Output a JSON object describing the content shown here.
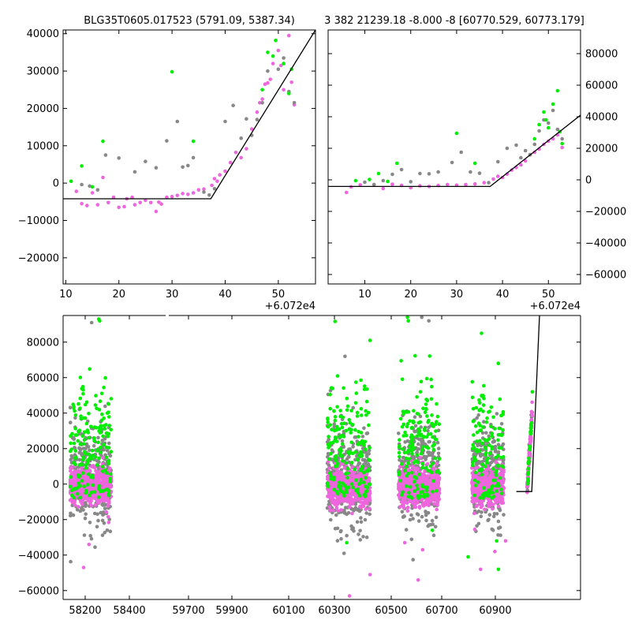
{
  "chart_data": [
    {
      "id": "top_left",
      "type": "scatter",
      "title": "BLG35T0605.017523 (5791.09, 5387.34)",
      "x_offset_label": "+6.072e4",
      "xlim": [
        9.5,
        57
      ],
      "ylim": [
        -27000,
        41000
      ],
      "xticks": [
        10,
        20,
        30,
        40,
        50
      ],
      "yticks": [
        -20000,
        -10000,
        0,
        10000,
        20000,
        30000,
        40000
      ],
      "ytick_labels": [
        "−20000",
        "−10000",
        "0",
        "10000",
        "20000",
        "30000",
        "40000"
      ],
      "y_axis_side": "left",
      "model_line": {
        "x": [
          9.5,
          37.3,
          57
        ],
        "y": [
          -4200,
          -4200,
          41000
        ]
      },
      "series": [
        {
          "color": "#ee66dd",
          "points": [
            [
              12,
              -2200
            ],
            [
              13,
              -5500
            ],
            [
              14,
              -6000
            ],
            [
              15,
              -2600
            ],
            [
              16,
              -5800
            ],
            [
              17,
              1500
            ],
            [
              18,
              -5200
            ],
            [
              19,
              -3800
            ],
            [
              20,
              -6500
            ],
            [
              21,
              -6300
            ],
            [
              21.5,
              -4200
            ],
            [
              22.5,
              -3800
            ],
            [
              23,
              -5800
            ],
            [
              24,
              -5200
            ],
            [
              25,
              -4600
            ],
            [
              26,
              -5200
            ],
            [
              27,
              -7600
            ],
            [
              27.5,
              -5100
            ],
            [
              28,
              -5600
            ],
            [
              29,
              -3800
            ],
            [
              30,
              -3600
            ],
            [
              31,
              -3300
            ],
            [
              32,
              -2800
            ],
            [
              33,
              -3000
            ],
            [
              34,
              -2600
            ],
            [
              35,
              -1800
            ],
            [
              36,
              -1600
            ],
            [
              37.5,
              -600
            ],
            [
              38,
              1200
            ],
            [
              38.5,
              500
            ],
            [
              39,
              2200
            ],
            [
              40,
              3200
            ],
            [
              41,
              5500
            ],
            [
              42,
              8200
            ],
            [
              43,
              6800
            ],
            [
              44,
              9200
            ],
            [
              45,
              14500
            ],
            [
              46,
              19000
            ],
            [
              46.5,
              21500
            ],
            [
              47,
              22500
            ],
            [
              47.5,
              26500
            ],
            [
              48,
              26800
            ],
            [
              48.5,
              27800
            ],
            [
              49,
              32000
            ],
            [
              50,
              35500
            ],
            [
              50.5,
              31500
            ],
            [
              51,
              25000
            ],
            [
              52,
              39500
            ],
            [
              52.5,
              27000
            ],
            [
              53,
              21000
            ]
          ]
        },
        {
          "color": "#888888",
          "points": [
            [
              13,
              -400
            ],
            [
              14.5,
              -800
            ],
            [
              16,
              -1800
            ],
            [
              17.5,
              7500
            ],
            [
              20,
              6700
            ],
            [
              23,
              3000
            ],
            [
              25,
              5800
            ],
            [
              27,
              4100
            ],
            [
              29,
              11300
            ],
            [
              31,
              16500
            ],
            [
              32,
              4300
            ],
            [
              33,
              4700
            ],
            [
              34,
              6800
            ],
            [
              36,
              -2400
            ],
            [
              37,
              -3200
            ],
            [
              38,
              -1500
            ],
            [
              40,
              16500
            ],
            [
              41.5,
              20800
            ],
            [
              43,
              12000
            ],
            [
              44,
              17200
            ],
            [
              45,
              12800
            ],
            [
              46,
              17000
            ],
            [
              47,
              21500
            ],
            [
              48,
              30000
            ],
            [
              50,
              30500
            ],
            [
              51,
              33500
            ],
            [
              52,
              24500
            ],
            [
              53,
              21500
            ]
          ]
        },
        {
          "color": "#00ee00",
          "points": [
            [
              11,
              500
            ],
            [
              13,
              4600
            ],
            [
              15,
              -1000
            ],
            [
              17,
              11200
            ],
            [
              30,
              29800
            ],
            [
              34,
              11200
            ],
            [
              47,
              25000
            ],
            [
              48,
              35000
            ],
            [
              49,
              34000
            ],
            [
              49.5,
              38200
            ],
            [
              51,
              32000
            ],
            [
              52,
              24000
            ],
            [
              52.5,
              30500
            ]
          ]
        }
      ]
    },
    {
      "id": "top_right",
      "type": "scatter",
      "title": "3 382 21239.18 -8.000 -8 [60770.529, 60773.179]",
      "x_offset_label": "+6.072e4",
      "xlim": [
        2,
        57
      ],
      "ylim": [
        -66000,
        95000
      ],
      "xticks": [
        10,
        20,
        30,
        40,
        50
      ],
      "yticks": [
        -60000,
        -40000,
        -20000,
        0,
        20000,
        40000,
        60000,
        80000
      ],
      "ytick_labels": [
        "−60000",
        "−40000",
        "−20000",
        "0",
        "20000",
        "40000",
        "60000",
        "80000"
      ],
      "y_axis_side": "right",
      "model_line": {
        "x": [
          2,
          37.3,
          57
        ],
        "y": [
          -4200,
          -4200,
          41000
        ]
      },
      "series": [
        {
          "color": "#ee66dd",
          "points": [
            [
              6,
              -8000
            ],
            [
              7,
              -4500
            ],
            [
              9,
              -3200
            ],
            [
              12,
              -3000
            ],
            [
              14,
              -5500
            ],
            [
              16,
              -2800
            ],
            [
              18,
              -3500
            ],
            [
              20,
              -5000
            ],
            [
              22,
              -3800
            ],
            [
              24,
              -4200
            ],
            [
              26,
              -3600
            ],
            [
              28,
              -3000
            ],
            [
              30,
              -3400
            ],
            [
              32,
              -3000
            ],
            [
              34,
              -2600
            ],
            [
              36,
              -1800
            ],
            [
              38,
              500
            ],
            [
              39,
              2200
            ],
            [
              40,
              1500
            ],
            [
              41,
              3600
            ],
            [
              42,
              6200
            ],
            [
              43,
              7800
            ],
            [
              44,
              9500
            ],
            [
              45,
              12000
            ],
            [
              46,
              15800
            ],
            [
              47,
              17500
            ],
            [
              48,
              19500
            ],
            [
              49,
              22500
            ],
            [
              50,
              24500
            ],
            [
              51,
              26000
            ],
            [
              52,
              28500
            ],
            [
              53,
              20500
            ]
          ]
        },
        {
          "color": "#888888",
          "points": [
            [
              10,
              -1500
            ],
            [
              12,
              -3000
            ],
            [
              14,
              -500
            ],
            [
              16,
              3500
            ],
            [
              18,
              6500
            ],
            [
              20,
              -1200
            ],
            [
              22,
              4000
            ],
            [
              24,
              3800
            ],
            [
              26,
              5000
            ],
            [
              29,
              11000
            ],
            [
              31,
              17500
            ],
            [
              33,
              5000
            ],
            [
              35,
              4200
            ],
            [
              37,
              -1800
            ],
            [
              39,
              11500
            ],
            [
              41,
              20000
            ],
            [
              43,
              22000
            ],
            [
              44,
              14000
            ],
            [
              45,
              18500
            ],
            [
              46,
              16000
            ],
            [
              47,
              22500
            ],
            [
              48,
              31000
            ],
            [
              49,
              38000
            ],
            [
              50,
              36000
            ],
            [
              51,
              44000
            ],
            [
              52,
              32000
            ],
            [
              53,
              26000
            ]
          ]
        },
        {
          "color": "#00ee00",
          "points": [
            [
              8,
              -500
            ],
            [
              11,
              200
            ],
            [
              13,
              4000
            ],
            [
              15,
              -1000
            ],
            [
              17,
              10500
            ],
            [
              30,
              29500
            ],
            [
              34,
              10500
            ],
            [
              47,
              26000
            ],
            [
              48,
              35000
            ],
            [
              49,
              43000
            ],
            [
              49.5,
              38000
            ],
            [
              50,
              33000
            ],
            [
              51,
              48000
            ],
            [
              52,
              56500
            ],
            [
              52.5,
              30500
            ],
            [
              53,
              23000
            ]
          ]
        }
      ]
    },
    {
      "id": "bottom",
      "type": "scatter",
      "xlim": [
        58130,
        61030
      ],
      "ylim": [
        -65000,
        95000
      ],
      "xticks": [
        58200,
        58400,
        59700,
        59900,
        60100,
        60300,
        60500,
        60700,
        60900
      ],
      "xtick_labels": [
        "58200",
        "58400",
        "59700",
        "59900",
        "60100",
        "60300",
        "60500",
        "60700",
        "60900"
      ],
      "yticks": [
        -60000,
        -40000,
        -20000,
        0,
        20000,
        40000,
        60000,
        80000
      ],
      "ytick_labels": [
        "−60000",
        "−40000",
        "−20000",
        "0",
        "20000",
        "40000",
        "60000",
        "80000"
      ],
      "y_axis_side": "left",
      "seasons": [
        [
          58170,
          58400
        ],
        [
          59610,
          59850
        ],
        [
          60010,
          60240
        ],
        [
          60420,
          60600
        ],
        [
          60730,
          60760
        ]
      ],
      "model_line": {
        "x": [
          60670,
          60757,
          60800
        ],
        "y": [
          -4200,
          -4200,
          95000
        ]
      },
      "series": [
        {
          "color": "#ee66dd",
          "name": "",
          "center": 0,
          "spread": 5000,
          "weight": 1.0
        },
        {
          "color": "#888888",
          "name": "",
          "center": 5000,
          "spread": 14000,
          "weight": 0.55
        },
        {
          "color": "#00ee00",
          "name": "",
          "center": 20000,
          "spread": 20000,
          "weight": 0.28
        }
      ],
      "outliers": [
        {
          "color": "#00ee00",
          "points": [
            [
              58330,
              93000
            ],
            [
              58335,
              92000
            ],
            [
              59850,
              81000
            ],
            [
              60060,
              94000
            ],
            [
              60065,
              92000
            ],
            [
              60475,
              85000
            ],
            [
              60570,
              -48000
            ],
            [
              60560,
              -32000
            ],
            [
              60400,
              -41000
            ],
            [
              60760,
              52000
            ],
            [
              59720,
              -33000
            ],
            [
              60200,
              -26000
            ]
          ]
        },
        {
          "color": "#ee66dd",
          "points": [
            [
              58245,
              -47000
            ],
            [
              58275,
              -34000
            ],
            [
              59735,
              -63000
            ],
            [
              59850,
              -51000
            ],
            [
              60045,
              -33000
            ],
            [
              60120,
              -54000
            ],
            [
              60145,
              -37000
            ],
            [
              60470,
              -48000
            ],
            [
              60550,
              -38000
            ],
            [
              60610,
              -32000
            ]
          ]
        },
        {
          "color": "#888888",
          "points": [
            [
              58290,
              91000
            ],
            [
              59710,
              72000
            ],
            [
              60140,
              94000
            ],
            [
              60180,
              92000
            ],
            [
              60540,
              -26000
            ],
            [
              58320,
              -24000
            ],
            [
              58360,
              -22000
            ]
          ]
        }
      ]
    }
  ]
}
